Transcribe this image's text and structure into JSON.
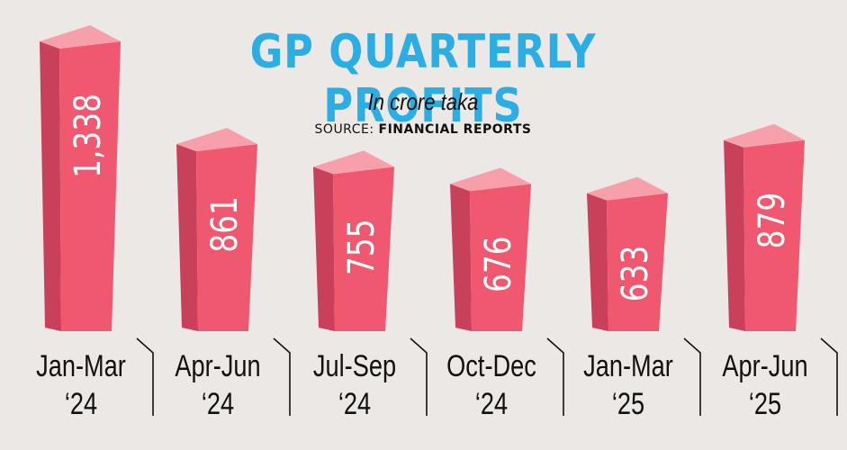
{
  "header": {
    "title": "GP QUARTERLY PROFITS",
    "subtitle": "In crore taka",
    "source_label": "SOURCE: ",
    "source_value": "FINANCIAL REPORTS"
  },
  "colors": {
    "bar_front": "#f0586f",
    "bar_side": "#c9405a",
    "bar_top": "#f7a0ab",
    "title": "#2aaee4",
    "background": "#ece8e5"
  },
  "chart_data": {
    "type": "bar",
    "title": "GP QUARTERLY PROFITS",
    "subtitle": "In crore taka",
    "categories": [
      [
        "Jan-Mar",
        "‘24"
      ],
      [
        "Apr-Jun",
        "‘24"
      ],
      [
        "Jul-Sep",
        "‘24"
      ],
      [
        "Oct-Dec",
        "‘24"
      ],
      [
        "Jan-Mar",
        "‘25"
      ],
      [
        "Apr-Jun",
        "‘25"
      ]
    ],
    "value_labels": [
      "1,338",
      "861",
      "755",
      "676",
      "633",
      "879"
    ],
    "values": [
      1338,
      861,
      755,
      676,
      633,
      879
    ],
    "ylim": [
      0,
      1338
    ],
    "grid": false,
    "legend": "none"
  }
}
